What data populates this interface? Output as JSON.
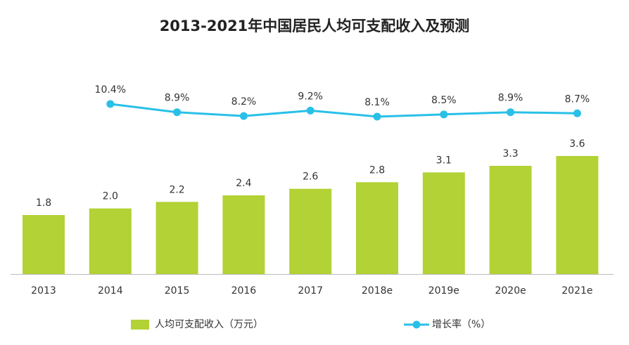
{
  "chart_data": {
    "type": "bar",
    "title": "2013-2021年中国居民人均可支配收入及预测",
    "categories": [
      "2013",
      "2014",
      "2015",
      "2016",
      "2017",
      "2018e",
      "2019e",
      "2020e",
      "2021e"
    ],
    "series": [
      {
        "name": "人均可支配收入（万元）",
        "type": "bar",
        "color": "#b2d235",
        "values": [
          1.8,
          2.0,
          2.2,
          2.4,
          2.6,
          2.8,
          3.1,
          3.3,
          3.6
        ],
        "value_labels": [
          "1.8",
          "2.0",
          "2.2",
          "2.4",
          "2.6",
          "2.8",
          "3.1",
          "3.3",
          "3.6"
        ]
      },
      {
        "name": "增长率（%）",
        "type": "line",
        "color": "#29c0e8",
        "values": [
          null,
          10.4,
          8.9,
          8.2,
          9.2,
          8.1,
          8.5,
          8.9,
          8.7
        ],
        "value_labels": [
          null,
          "10.4%",
          "8.9%",
          "8.2%",
          "9.2%",
          "8.1%",
          "8.5%",
          "8.9%",
          "8.7%"
        ]
      }
    ]
  }
}
